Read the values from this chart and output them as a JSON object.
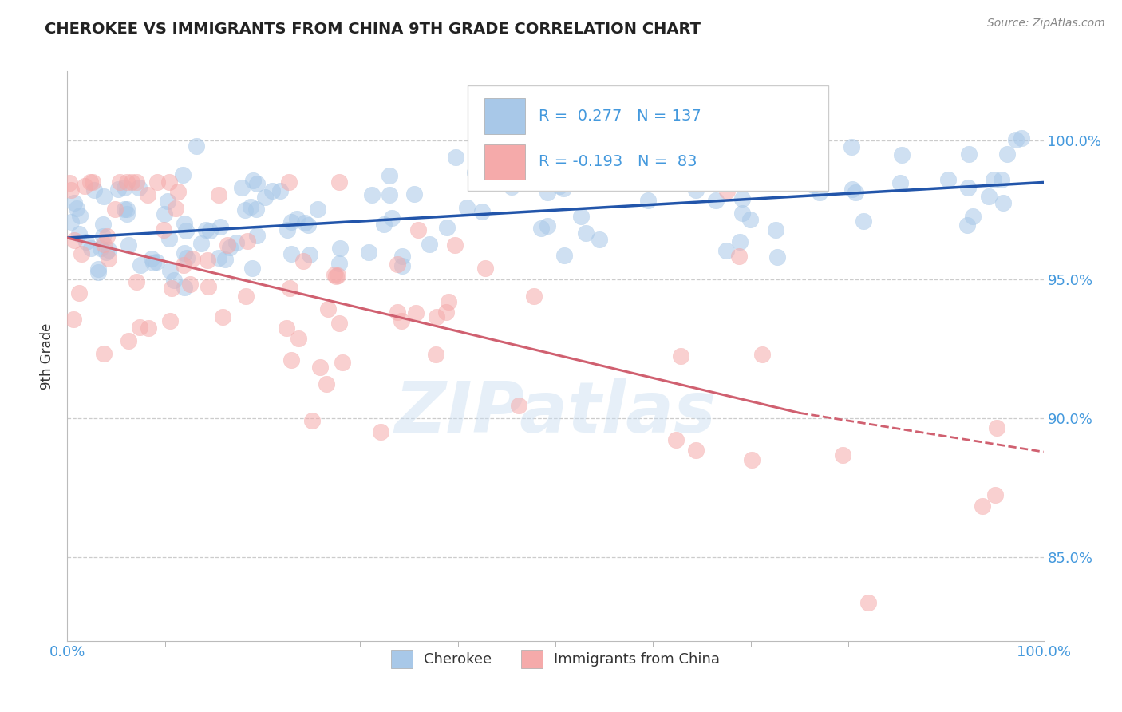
{
  "title": "CHEROKEE VS IMMIGRANTS FROM CHINA 9TH GRADE CORRELATION CHART",
  "source_text": "Source: ZipAtlas.com",
  "ylabel": "9th Grade",
  "xmin": 0.0,
  "xmax": 100.0,
  "ymin": 82.0,
  "ymax": 102.5,
  "yticks": [
    85.0,
    90.0,
    95.0,
    100.0
  ],
  "ytick_labels": [
    "85.0%",
    "90.0%",
    "95.0%",
    "100.0%"
  ],
  "xtick_left_label": "0.0%",
  "xtick_right_label": "100.0%",
  "blue_R": 0.277,
  "blue_N": 137,
  "pink_R": -0.193,
  "pink_N": 83,
  "blue_color": "#A8C8E8",
  "blue_line_color": "#2255AA",
  "pink_color": "#F5AAAA",
  "pink_line_color": "#D06070",
  "blue_trend_y_start": 96.5,
  "blue_trend_y_end": 98.5,
  "pink_trend_y_start": 96.5,
  "pink_trend_y_solid_end_x": 75,
  "pink_trend_y_solid_end": 90.2,
  "pink_trend_y_end": 88.8,
  "watermark_text": "ZIPatlas",
  "legend_label_blue": "Cherokee",
  "legend_label_pink": "Immigrants from China",
  "background_color": "#FFFFFF",
  "grid_color": "#CCCCCC",
  "right_axis_color": "#4499DD"
}
